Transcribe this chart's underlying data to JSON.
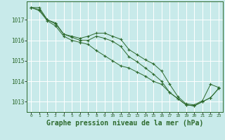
{
  "background_color": "#c8eaea",
  "grid_color": "#ffffff",
  "line_color": "#2d6a2d",
  "xlabel": "Graphe pression niveau de la mer (hPa)",
  "xlabel_fontsize": 7,
  "ylabel_ticks": [
    1013,
    1014,
    1015,
    1016,
    1017
  ],
  "xlim": [
    -0.5,
    23.5
  ],
  "ylim": [
    1012.5,
    1017.9
  ],
  "xticks": [
    0,
    1,
    2,
    3,
    4,
    5,
    6,
    7,
    8,
    9,
    10,
    11,
    12,
    13,
    14,
    15,
    16,
    17,
    18,
    19,
    20,
    21,
    22,
    23
  ],
  "series1": {
    "x": [
      0,
      1,
      2,
      3,
      4,
      5,
      6,
      7,
      8,
      9,
      10,
      11,
      12,
      13,
      14,
      15,
      16,
      17,
      18,
      19,
      20,
      21,
      22,
      23
    ],
    "y": [
      1017.6,
      1017.6,
      1017.0,
      1016.8,
      1016.3,
      1016.2,
      1016.1,
      1016.2,
      1016.35,
      1016.35,
      1016.2,
      1016.05,
      1015.55,
      1015.3,
      1015.05,
      1014.85,
      1014.5,
      1013.85,
      1013.25,
      1012.9,
      1012.85,
      1013.05,
      1013.85,
      1013.7
    ]
  },
  "series2": {
    "x": [
      0,
      1,
      2,
      3,
      4,
      5,
      6,
      7,
      8,
      9,
      10,
      11,
      12,
      13,
      14,
      15,
      16,
      17,
      18,
      19,
      20,
      21,
      22,
      23
    ],
    "y": [
      1017.6,
      1017.5,
      1017.0,
      1016.85,
      1016.3,
      1016.15,
      1016.0,
      1016.0,
      1016.2,
      1016.1,
      1015.95,
      1015.7,
      1015.2,
      1014.95,
      1014.65,
      1014.35,
      1014.0,
      1013.45,
      1013.15,
      1012.85,
      1012.8,
      1013.0,
      1013.2,
      1013.65
    ]
  },
  "series3": {
    "x": [
      0,
      1,
      2,
      3,
      4,
      5,
      6,
      7,
      8,
      9,
      10,
      11,
      12,
      13,
      14,
      15,
      16,
      17,
      18,
      19,
      20,
      21,
      22,
      23
    ],
    "y": [
      1017.6,
      1017.45,
      1016.95,
      1016.7,
      1016.2,
      1016.0,
      1015.9,
      1015.8,
      1015.5,
      1015.25,
      1015.0,
      1014.75,
      1014.65,
      1014.45,
      1014.25,
      1014.0,
      1013.85,
      1013.45,
      1013.15,
      1012.85,
      1012.8,
      1013.0,
      1013.2,
      1013.65
    ]
  }
}
